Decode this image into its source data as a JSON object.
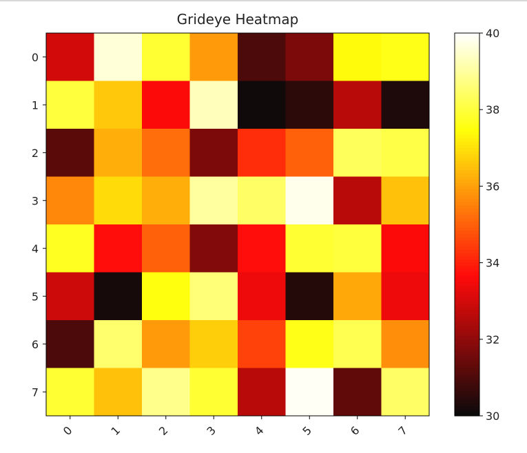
{
  "chart_data": {
    "type": "heatmap",
    "title": "Grideye Heatmap",
    "colormap": "hot",
    "x_ticks": [
      "0",
      "1",
      "2",
      "3",
      "4",
      "5",
      "6",
      "7"
    ],
    "y_ticks": [
      "0",
      "1",
      "2",
      "3",
      "4",
      "5",
      "6",
      "7"
    ],
    "values": [
      [
        33.0,
        39.6,
        37.9,
        35.9,
        31.0,
        31.7,
        37.4,
        37.6
      ],
      [
        38.0,
        36.6,
        33.6,
        39.3,
        30.1,
        30.5,
        32.6,
        30.3
      ],
      [
        31.2,
        36.2,
        35.2,
        31.7,
        34.2,
        35.0,
        38.3,
        38.1
      ],
      [
        35.6,
        36.9,
        36.2,
        39.0,
        38.4,
        39.8,
        32.6,
        36.5
      ],
      [
        37.7,
        33.7,
        35.0,
        31.8,
        33.7,
        37.9,
        38.0,
        33.6
      ],
      [
        32.9,
        30.2,
        37.5,
        38.6,
        33.4,
        30.4,
        36.1,
        33.4
      ],
      [
        31.0,
        38.5,
        35.9,
        36.7,
        34.5,
        37.6,
        38.2,
        35.7
      ],
      [
        37.9,
        36.5,
        38.8,
        37.9,
        32.6,
        39.9,
        31.3,
        38.4
      ]
    ],
    "colorbar": {
      "min": 30,
      "max": 40,
      "ticks": [
        "30",
        "32",
        "34",
        "36",
        "38",
        "40"
      ]
    }
  }
}
